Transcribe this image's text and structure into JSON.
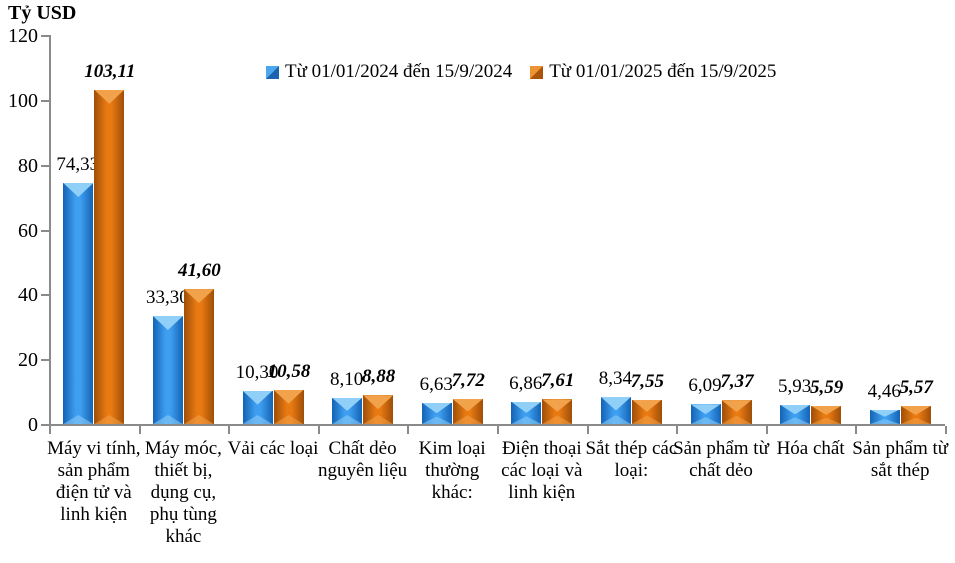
{
  "title": "Tỷ USD",
  "chart_data": {
    "type": "bar",
    "title": "Tỷ USD",
    "ylabel": "Tỷ USD",
    "xlabel": "",
    "ylim": [
      0,
      120
    ],
    "yticks": [
      0,
      20,
      40,
      60,
      80,
      100,
      120
    ],
    "grid": false,
    "legend_position": "top-center",
    "categories": [
      "Máy vi tính, sản phẩm điện tử và linh kiện",
      "Máy móc, thiết bị, dụng cụ, phụ tùng khác",
      "Vải các loại",
      "Chất dẻo nguyên liệu",
      "Kim loại thường khác:",
      "Điện thoại các loại và linh kiện",
      "Sắt thép các loại:",
      "Sản phẩm từ chất dẻo",
      "Hóa chất",
      "Sản phẩm từ sắt thép"
    ],
    "series": [
      {
        "name": "Từ 01/01/2024 đến 15/9/2024",
        "values": [
          74.33,
          33.3,
          10.3,
          8.1,
          6.63,
          6.86,
          8.34,
          6.09,
          5.93,
          4.46
        ],
        "value_labels": [
          "74,33",
          "33,30",
          "10,30",
          "8,10",
          "6,63",
          "6,86",
          "8,34",
          "6,09",
          "5,93",
          "4,46"
        ],
        "label_style": "regular"
      },
      {
        "name": "Từ 01/01/2025 đến 15/9/2025",
        "values": [
          103.11,
          41.6,
          10.58,
          8.88,
          7.72,
          7.61,
          7.55,
          7.37,
          5.59,
          5.57
        ],
        "value_labels": [
          "103,11",
          "41,60",
          "10,58",
          "8,88",
          "7,72",
          "7,61",
          "7,55",
          "7,37",
          "5,59",
          "5,57"
        ],
        "label_style": "bold-italic"
      }
    ]
  },
  "colors": {
    "axis": "#8a8a8a",
    "text": "#000000",
    "series_2024": {
      "center": "#3e9ef0",
      "edge": "#1463b4",
      "notch": "#90d0f8",
      "legend_light": "#4da7ee",
      "legend_dark": "#1b64ad"
    },
    "series_2025": {
      "center": "#e97a12",
      "edge": "#9e4e08",
      "notch": "#f2a24a",
      "legend_light": "#ee9335",
      "legend_dark": "#aa5409"
    }
  }
}
